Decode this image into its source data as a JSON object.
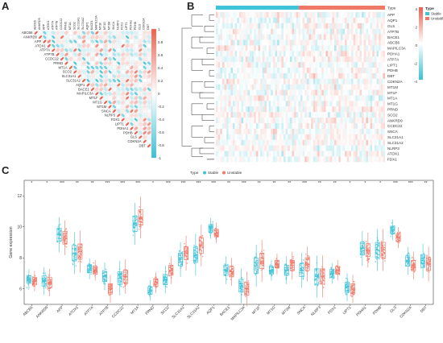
{
  "panels": {
    "a": "A",
    "b": "B",
    "c": "C"
  },
  "colors": {
    "stable": "#3ec3d8",
    "unstable": "#f07868",
    "pos": "#e8604e",
    "neg": "#3bbfd4"
  },
  "genes_corr": [
    "ABCB6",
    "ANKRD9",
    "APP",
    "ATOX1",
    "ATP7A",
    "ATP7B",
    "CCDC22",
    "PRND",
    "MT1A",
    "SCO2",
    "SLC31A1",
    "SLC31A2",
    "AQP1",
    "BACE1",
    "MAPILC3A",
    "MT1F",
    "MT1G",
    "MT1M",
    "SNCA",
    "NLRP3",
    "FDX1",
    "LIPT1",
    "PDHA1",
    "PDHB",
    "GLS",
    "CDKN2A",
    "DBT"
  ],
  "corr_colorbar_ticks": [
    "1",
    "0.8",
    "0.6",
    "0.4",
    "0.2",
    "0",
    "-0.2",
    "-0.4",
    "-0.6",
    "-0.8",
    "-1"
  ],
  "heatmap": {
    "type_label": "Type",
    "rows": [
      "APP",
      "AQP1",
      "GLS",
      "ATP7B",
      "BACE1",
      "ABCB6",
      "MAPILC3A",
      "PDHA1",
      "ATP7A",
      "LIPT1",
      "PDHB",
      "DBT",
      "CDKN2A",
      "MT1M",
      "MT1F",
      "MT1A",
      "MT1G",
      "PRND",
      "SCO2",
      "ANKRD9",
      "CCDC22",
      "SNCA",
      "SLC31A1",
      "SLC31A2",
      "NLRP3",
      "ATOX1",
      "FDX1"
    ],
    "scale_ticks": [
      "4",
      "2",
      "0",
      "-2",
      "-4"
    ],
    "legend_title": "Type",
    "legend_items": [
      "Stable",
      "Unstable"
    ]
  },
  "panel_c": {
    "legend_title": "Type",
    "legend_items": [
      "Stable",
      "Unstable"
    ],
    "ylabel": "Gene expression",
    "yticks": [
      "6",
      "8",
      "10",
      "12"
    ],
    "sig": [
      "*",
      "*",
      "***",
      "**",
      "**",
      "***",
      "***",
      "***",
      "*",
      "***",
      "***",
      "***",
      "***",
      "**",
      "***",
      "**",
      "**",
      "**",
      "***",
      "**",
      "**",
      "*",
      "*",
      "*",
      "***",
      "***",
      "**"
    ],
    "genes": [
      "ABCB6",
      "ANKRD9",
      "APP",
      "ATOX1",
      "ATP7A",
      "ATP7B",
      "CCDC22",
      "MT1A",
      "PRND",
      "SCO2",
      "SLC31A1",
      "SLC31A2",
      "AQP1",
      "BACE1",
      "MAPILC3A",
      "MT1F",
      "MT1G",
      "MT1M",
      "SNCA",
      "NLRP3",
      "FDX1",
      "LIPT1",
      "PDHA1",
      "PDHB",
      "GLS",
      "CDKN2A",
      "DBT"
    ]
  },
  "chart_data": {
    "type": "scatter",
    "ylabel": "Gene expression",
    "ylim": [
      5,
      13
    ],
    "categories": [
      "ABCB6",
      "ANKRD9",
      "APP",
      "ATOX1",
      "ATP7A",
      "ATP7B",
      "CCDC22",
      "MT1A",
      "PRND",
      "SCO2",
      "SLC31A1",
      "SLC31A2",
      "AQP1",
      "BACE1",
      "MAPILC3A",
      "MT1F",
      "MT1G",
      "MT1M",
      "SNCA",
      "NLRP3",
      "FDX1",
      "LIPT1",
      "PDHA1",
      "PDHB",
      "GLS",
      "CDKN2A",
      "DBT"
    ],
    "series": [
      {
        "name": "Stable",
        "values": [
          6.6,
          6.5,
          9.5,
          8.3,
          7.3,
          6.8,
          6.7,
          10.2,
          5.9,
          6.6,
          7.9,
          8.2,
          9.9,
          7.2,
          6.2,
          7.5,
          7.2,
          7.2,
          7.2,
          6.8,
          7.0,
          6.1,
          8.6,
          8.5,
          9.8,
          7.8,
          7.8
        ]
      },
      {
        "name": "Unstable",
        "values": [
          6.5,
          6.4,
          9.3,
          8.4,
          7.2,
          6.0,
          6.8,
          10.6,
          6.4,
          7.2,
          8.3,
          8.8,
          9.6,
          7.1,
          6.0,
          7.8,
          7.6,
          7.5,
          7.6,
          6.8,
          7.2,
          6.0,
          8.5,
          8.5,
          9.3,
          7.5,
          7.6
        ]
      }
    ]
  }
}
